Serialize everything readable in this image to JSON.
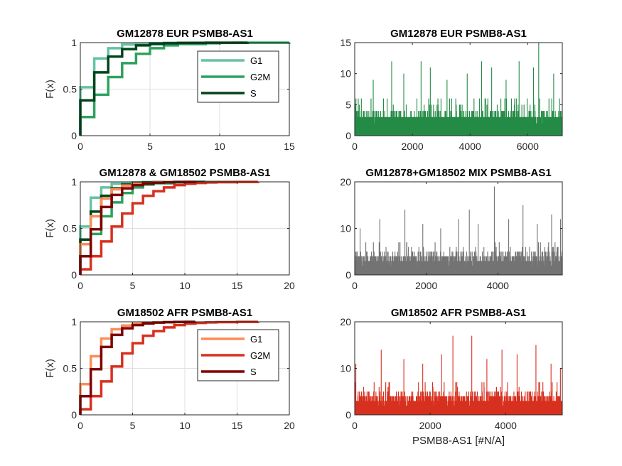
{
  "chart_data": [
    {
      "type": "line",
      "title": "GM12878 EUR PSMB8-AS1",
      "ylabel": "F(x)",
      "xlabel": "",
      "xlim": [
        0,
        15
      ],
      "ylim": [
        0,
        1
      ],
      "xticks": [
        "0",
        "5",
        "10",
        "15"
      ],
      "yticks": [
        "0",
        "0.5",
        "1"
      ],
      "grid": true,
      "legend": "top-right",
      "step": true,
      "series": [
        {
          "name": "G1",
          "color": "#66c2a4",
          "x": [
            0,
            1,
            2,
            3,
            4,
            5,
            6,
            8,
            10
          ],
          "y": [
            0.52,
            0.83,
            0.94,
            0.98,
            0.99,
            0.995,
            0.998,
            0.999,
            1.0
          ]
        },
        {
          "name": "G2M",
          "color": "#2ca25f",
          "x": [
            0,
            1,
            2,
            3,
            4,
            5,
            6,
            7,
            9,
            10,
            11,
            15
          ],
          "y": [
            0.2,
            0.44,
            0.63,
            0.78,
            0.88,
            0.94,
            0.97,
            0.985,
            0.993,
            0.997,
            0.999,
            1.0
          ]
        },
        {
          "name": "S",
          "color": "#00441b",
          "x": [
            0,
            1,
            2,
            3,
            4,
            5,
            6,
            7,
            9,
            12
          ],
          "y": [
            0.38,
            0.68,
            0.85,
            0.93,
            0.97,
            0.985,
            0.993,
            0.997,
            0.999,
            1.0
          ]
        }
      ]
    },
    {
      "type": "bar",
      "title": "GM12878 EUR PSMB8-AS1",
      "ylabel": "",
      "xlabel": "",
      "xlim": [
        0,
        7200
      ],
      "ylim": [
        0,
        15
      ],
      "xticks": [
        "0",
        "2000",
        "4000",
        "6000"
      ],
      "yticks": [
        "0",
        "5",
        "10",
        "15"
      ],
      "color": "#238b45",
      "n": 7200,
      "max_value": 15,
      "peaks": [
        [
          120,
          6
        ],
        [
          640,
          9
        ],
        [
          1280,
          12
        ],
        [
          1700,
          10
        ],
        [
          2300,
          12
        ],
        [
          2620,
          11
        ],
        [
          3200,
          9
        ],
        [
          3900,
          10
        ],
        [
          4400,
          12
        ],
        [
          4750,
          11
        ],
        [
          5250,
          9
        ],
        [
          5700,
          12
        ],
        [
          6200,
          11
        ],
        [
          6380,
          15
        ],
        [
          6900,
          10
        ]
      ]
    },
    {
      "type": "line",
      "title": "GM12878 & GM18502 PSMB8-AS1",
      "ylabel": "F(x)",
      "xlabel": "",
      "xlim": [
        0,
        20
      ],
      "ylim": [
        0,
        1
      ],
      "xticks": [
        "0",
        "5",
        "10",
        "15",
        "20"
      ],
      "yticks": [
        "0",
        "0.5",
        "1"
      ],
      "grid": true,
      "step": true,
      "series": [
        {
          "color": "#66c2a4",
          "x": [
            0,
            1,
            2,
            3,
            4,
            5,
            6,
            8,
            10
          ],
          "y": [
            0.52,
            0.83,
            0.94,
            0.98,
            0.99,
            0.995,
            0.998,
            0.999,
            1.0
          ]
        },
        {
          "color": "#2ca25f",
          "x": [
            0,
            1,
            2,
            3,
            4,
            5,
            6,
            7,
            9,
            10,
            11,
            15
          ],
          "y": [
            0.2,
            0.44,
            0.63,
            0.78,
            0.88,
            0.94,
            0.97,
            0.985,
            0.993,
            0.997,
            0.999,
            1.0
          ]
        },
        {
          "color": "#00441b",
          "x": [
            0,
            1,
            2,
            3,
            4,
            5,
            6,
            7,
            9,
            12
          ],
          "y": [
            0.38,
            0.68,
            0.85,
            0.93,
            0.97,
            0.985,
            0.993,
            0.997,
            0.999,
            1.0
          ]
        },
        {
          "color": "#fc8d59",
          "x": [
            0,
            1,
            2,
            3,
            4,
            5,
            6,
            7,
            8,
            9,
            11
          ],
          "y": [
            0.33,
            0.63,
            0.82,
            0.92,
            0.96,
            0.98,
            0.99,
            0.995,
            0.998,
            0.999,
            1.0
          ]
        },
        {
          "color": "#d7301f",
          "x": [
            0,
            1,
            2,
            3,
            4,
            5,
            6,
            7,
            8,
            9,
            10,
            11,
            12,
            13,
            15,
            17
          ],
          "y": [
            0.06,
            0.2,
            0.36,
            0.52,
            0.66,
            0.77,
            0.85,
            0.9,
            0.94,
            0.965,
            0.98,
            0.988,
            0.993,
            0.996,
            0.999,
            1.0
          ]
        },
        {
          "color": "#7f0000",
          "x": [
            0,
            1,
            2,
            3,
            4,
            5,
            6,
            7,
            8,
            9,
            10,
            11
          ],
          "y": [
            0.2,
            0.49,
            0.73,
            0.86,
            0.93,
            0.965,
            0.982,
            0.991,
            0.995,
            0.998,
            0.999,
            1.0
          ]
        }
      ]
    },
    {
      "type": "bar",
      "title": "GM12878+GM18502 MIX PSMB8-AS1",
      "ylabel": "",
      "xlabel": "",
      "xlim": [
        0,
        5800
      ],
      "ylim": [
        0,
        20
      ],
      "xticks": [
        "0",
        "2000",
        "4000"
      ],
      "yticks": [
        "0",
        "10",
        "20"
      ],
      "color": "#737373",
      "n": 5800,
      "max_value": 19,
      "peaks": [
        [
          150,
          10
        ],
        [
          700,
          12
        ],
        [
          1400,
          14
        ],
        [
          1900,
          11
        ],
        [
          2400,
          10
        ],
        [
          2900,
          12
        ],
        [
          3200,
          14
        ],
        [
          3450,
          11
        ],
        [
          3900,
          19
        ],
        [
          4300,
          12
        ],
        [
          4700,
          15
        ],
        [
          5100,
          11
        ],
        [
          5500,
          13
        ],
        [
          5750,
          12
        ]
      ]
    },
    {
      "type": "line",
      "title": "GM18502 AFR PSMB8-AS1",
      "ylabel": "F(x)",
      "xlabel": "",
      "xlim": [
        0,
        20
      ],
      "ylim": [
        0,
        1
      ],
      "xticks": [
        "0",
        "5",
        "10",
        "15",
        "20"
      ],
      "yticks": [
        "0",
        "0.5",
        "1"
      ],
      "grid": true,
      "legend": "top-right",
      "step": true,
      "series": [
        {
          "name": "G1",
          "color": "#fc8d59",
          "x": [
            0,
            1,
            2,
            3,
            4,
            5,
            6,
            7,
            8,
            9,
            11
          ],
          "y": [
            0.33,
            0.63,
            0.82,
            0.92,
            0.96,
            0.98,
            0.99,
            0.995,
            0.998,
            0.999,
            1.0
          ]
        },
        {
          "name": "G2M",
          "color": "#d7301f",
          "x": [
            0,
            1,
            2,
            3,
            4,
            5,
            6,
            7,
            8,
            9,
            10,
            11,
            12,
            13,
            15,
            17
          ],
          "y": [
            0.06,
            0.2,
            0.36,
            0.52,
            0.66,
            0.77,
            0.85,
            0.9,
            0.94,
            0.965,
            0.98,
            0.988,
            0.993,
            0.996,
            0.999,
            1.0
          ]
        },
        {
          "name": "S",
          "color": "#7f0000",
          "x": [
            0,
            1,
            2,
            3,
            4,
            5,
            6,
            7,
            8,
            9,
            10,
            11
          ],
          "y": [
            0.2,
            0.49,
            0.73,
            0.86,
            0.93,
            0.965,
            0.982,
            0.991,
            0.995,
            0.998,
            0.999,
            1.0
          ]
        }
      ]
    },
    {
      "type": "bar",
      "title": "GM18502 AFR PSMB8-AS1",
      "ylabel": "",
      "xlabel": "PSMB8-AS1 [#N/A]",
      "xlim": [
        0,
        5500
      ],
      "ylim": [
        0,
        20
      ],
      "xticks": [
        "0",
        "2000",
        "4000"
      ],
      "yticks": [
        "0",
        "10",
        "20"
      ],
      "color": "#d7301f",
      "n": 5500,
      "max_value": 17,
      "peaks": [
        [
          30,
          11
        ],
        [
          700,
          14
        ],
        [
          1300,
          12
        ],
        [
          1800,
          11
        ],
        [
          2300,
          13
        ],
        [
          2600,
          17
        ],
        [
          3100,
          17
        ],
        [
          3500,
          12
        ],
        [
          3900,
          14
        ],
        [
          4300,
          13
        ],
        [
          4800,
          15
        ],
        [
          5200,
          11
        ],
        [
          5450,
          10
        ]
      ]
    }
  ]
}
